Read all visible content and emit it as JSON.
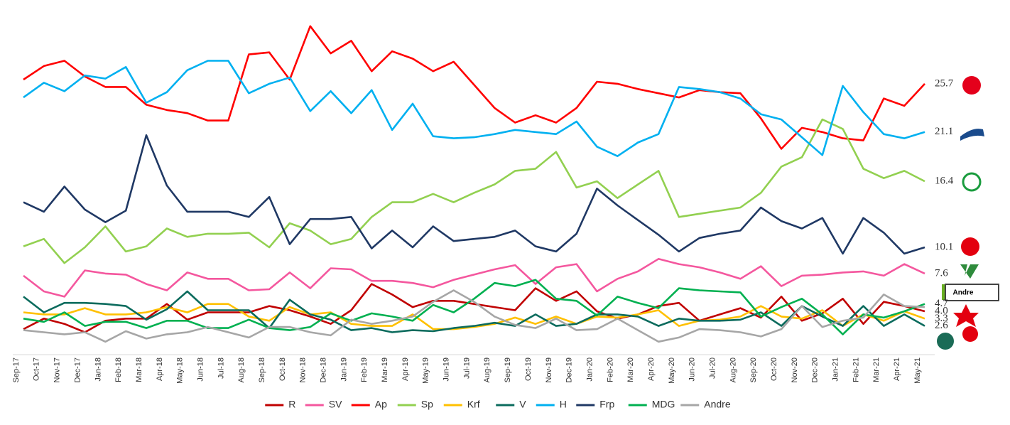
{
  "chart_data": {
    "type": "line",
    "categories": [
      "Sep-17",
      "Oct-17",
      "Nov-17",
      "Dec-17",
      "Jan-18",
      "Feb-18",
      "Mar-18",
      "Apr-18",
      "May-18",
      "Jun-18",
      "Jul-18",
      "Aug-18",
      "Sep-18",
      "Oct-18",
      "Nov-18",
      "Dec-18",
      "Jan-19",
      "Feb-19",
      "Mar-19",
      "Apr-19",
      "May-19",
      "Jun-19",
      "Jul-19",
      "Aug-19",
      "Sep-19",
      "Oct-19",
      "Nov-19",
      "Dec-19",
      "Jan-20",
      "Feb-20",
      "Mar-20",
      "Apr-20",
      "May-20",
      "Jun-20",
      "Jul-20",
      "Aug-20",
      "Sep-20",
      "Oct-20",
      "Nov-20",
      "Dec-20",
      "Jan-21",
      "Feb-21",
      "Mar-21",
      "Apr-21",
      "May-21"
    ],
    "ylim": [
      0,
      32
    ],
    "legend": "bottom",
    "series": [
      {
        "name": "R",
        "color": "#c00000",
        "values": [
          2.3,
          3.3,
          2.8,
          2.0,
          3.1,
          3.3,
          3.3,
          4.7,
          3.2,
          3.9,
          3.9,
          3.9,
          4.5,
          4.1,
          3.5,
          2.8,
          4.1,
          6.6,
          5.6,
          4.4,
          5.0,
          5.0,
          4.7,
          4.4,
          4.1,
          6.2,
          5.0,
          5.9,
          4.0,
          3.3,
          3.7,
          4.5,
          4.8,
          3.1,
          3.7,
          4.3,
          3.4,
          5.4,
          3.1,
          3.8,
          5.2,
          2.8,
          4.9,
          4.5,
          4.0
        ],
        "value_labels": [
          null,
          null,
          null,
          null,
          null,
          null,
          null,
          null,
          null,
          null,
          null,
          null,
          null,
          null,
          null,
          null,
          null,
          null,
          null,
          null,
          null,
          null,
          null,
          null,
          null,
          null,
          null,
          null,
          null,
          null,
          null,
          null,
          null,
          null,
          null,
          null,
          null,
          null,
          null,
          null,
          null,
          null,
          null,
          null,
          "4.0"
        ]
      },
      {
        "name": "SV",
        "color": "#f4579e",
        "values": [
          7.4,
          5.9,
          5.4,
          7.9,
          7.6,
          7.5,
          6.6,
          6.0,
          7.7,
          7.1,
          7.1,
          6.0,
          6.1,
          7.7,
          6.2,
          8.1,
          8.0,
          6.9,
          6.9,
          6.7,
          6.3,
          7.0,
          7.5,
          8.0,
          8.4,
          6.6,
          8.2,
          8.5,
          5.9,
          7.1,
          7.8,
          9.0,
          8.5,
          8.2,
          7.7,
          7.1,
          8.3,
          6.4,
          7.4,
          7.5,
          7.7,
          7.8,
          7.4,
          8.5,
          7.6
        ],
        "value_labels": [
          null,
          null,
          null,
          null,
          null,
          null,
          null,
          null,
          null,
          null,
          null,
          null,
          null,
          null,
          null,
          null,
          null,
          null,
          null,
          null,
          null,
          null,
          null,
          null,
          null,
          null,
          null,
          null,
          null,
          null,
          null,
          null,
          null,
          null,
          null,
          null,
          null,
          null,
          null,
          null,
          null,
          null,
          null,
          null,
          "7.6"
        ]
      },
      {
        "name": "Ap",
        "color": "#ff0000",
        "values": [
          26.1,
          27.4,
          27.9,
          26.4,
          25.4,
          25.4,
          23.7,
          23.2,
          22.9,
          22.2,
          22.2,
          28.5,
          28.7,
          26.1,
          31.2,
          28.6,
          29.8,
          26.9,
          28.8,
          28.1,
          26.9,
          27.8,
          25.6,
          23.4,
          22.0,
          22.7,
          22.0,
          23.4,
          25.9,
          25.7,
          25.2,
          24.8,
          24.4,
          25.1,
          24.9,
          24.8,
          22.4,
          19.5,
          21.5,
          21.1,
          20.5,
          20.3,
          24.3,
          23.6,
          25.7
        ],
        "value_labels": [
          null,
          null,
          null,
          null,
          null,
          null,
          null,
          null,
          null,
          null,
          null,
          null,
          null,
          null,
          null,
          null,
          null,
          null,
          null,
          null,
          null,
          null,
          null,
          null,
          null,
          null,
          null,
          null,
          null,
          null,
          null,
          null,
          null,
          null,
          null,
          null,
          null,
          null,
          null,
          null,
          null,
          null,
          null,
          null,
          "25.7"
        ]
      },
      {
        "name": "Sp",
        "color": "#92d050",
        "values": [
          10.2,
          10.9,
          8.6,
          10.1,
          12.1,
          9.7,
          10.2,
          11.9,
          11.1,
          11.4,
          11.4,
          11.5,
          10.1,
          12.4,
          11.7,
          10.4,
          10.9,
          13.0,
          14.4,
          14.4,
          15.2,
          14.4,
          15.3,
          16.1,
          17.4,
          17.6,
          19.2,
          15.8,
          16.4,
          14.8,
          16.1,
          17.4,
          13.0,
          13.3,
          13.6,
          13.9,
          15.3,
          17.8,
          18.7,
          22.3,
          21.4,
          17.6,
          16.7,
          17.4,
          16.4
        ],
        "value_labels": [
          null,
          null,
          null,
          null,
          null,
          null,
          null,
          null,
          null,
          null,
          null,
          null,
          null,
          null,
          null,
          null,
          null,
          null,
          null,
          null,
          null,
          null,
          null,
          null,
          null,
          null,
          null,
          null,
          null,
          null,
          null,
          null,
          null,
          null,
          null,
          null,
          null,
          null,
          null,
          null,
          null,
          null,
          null,
          null,
          "16.4"
        ]
      },
      {
        "name": "Krf",
        "color": "#ffc000",
        "values": [
          3.9,
          3.7,
          3.7,
          4.3,
          3.7,
          3.7,
          3.9,
          4.4,
          3.9,
          4.7,
          4.7,
          3.5,
          3.1,
          4.4,
          3.7,
          3.9,
          2.8,
          2.6,
          2.6,
          3.7,
          2.3,
          2.3,
          2.5,
          2.8,
          3.4,
          2.8,
          3.5,
          2.8,
          3.5,
          3.4,
          3.7,
          4.1,
          2.6,
          3.1,
          3.2,
          3.5,
          4.5,
          3.5,
          3.3,
          4.1,
          2.6,
          3.7,
          3.1,
          4.0,
          3.3
        ],
        "value_labels": [
          null,
          null,
          null,
          null,
          null,
          null,
          null,
          null,
          null,
          null,
          null,
          null,
          null,
          null,
          null,
          null,
          null,
          null,
          null,
          null,
          null,
          null,
          null,
          null,
          null,
          null,
          null,
          null,
          null,
          null,
          null,
          null,
          null,
          null,
          null,
          null,
          null,
          null,
          null,
          null,
          null,
          null,
          null,
          null,
          "3.3"
        ]
      },
      {
        "name": "V",
        "color": "#0b6b5d",
        "values": [
          5.4,
          3.9,
          4.8,
          4.8,
          4.7,
          4.5,
          3.2,
          4.2,
          5.9,
          4.1,
          4.1,
          4.1,
          2.4,
          5.1,
          3.7,
          3.2,
          2.2,
          2.4,
          2.0,
          2.2,
          2.1,
          2.4,
          2.6,
          2.9,
          2.6,
          3.7,
          2.6,
          2.8,
          3.7,
          3.7,
          3.5,
          2.6,
          3.3,
          3.1,
          3.1,
          3.2,
          3.9,
          2.6,
          4.5,
          3.5,
          2.6,
          4.5,
          2.6,
          3.7,
          2.6
        ],
        "value_labels": [
          null,
          null,
          null,
          null,
          null,
          null,
          null,
          null,
          null,
          null,
          null,
          null,
          null,
          null,
          null,
          null,
          null,
          null,
          null,
          null,
          null,
          null,
          null,
          null,
          null,
          null,
          null,
          null,
          null,
          null,
          null,
          null,
          null,
          null,
          null,
          null,
          null,
          null,
          null,
          null,
          null,
          null,
          null,
          null,
          "2.6"
        ]
      },
      {
        "name": "H",
        "color": "#00b0f0",
        "values": [
          24.4,
          25.8,
          25.0,
          26.5,
          26.2,
          27.3,
          23.9,
          24.9,
          27.0,
          27.9,
          27.9,
          24.8,
          25.7,
          26.3,
          23.1,
          25.0,
          22.9,
          25.1,
          21.3,
          23.8,
          20.7,
          20.5,
          20.6,
          20.9,
          21.3,
          21.1,
          20.9,
          22.1,
          19.7,
          18.8,
          20.1,
          20.9,
          25.4,
          25.2,
          24.9,
          24.3,
          22.8,
          22.3,
          20.6,
          18.9,
          25.5,
          23.0,
          20.9,
          20.5,
          21.1
        ],
        "value_labels": [
          null,
          null,
          null,
          null,
          null,
          null,
          null,
          null,
          null,
          null,
          null,
          null,
          null,
          null,
          null,
          null,
          null,
          null,
          null,
          null,
          null,
          null,
          null,
          null,
          null,
          null,
          null,
          null,
          null,
          null,
          null,
          null,
          null,
          null,
          null,
          null,
          null,
          null,
          null,
          null,
          null,
          null,
          null,
          null,
          "21.1"
        ]
      },
      {
        "name": "Frp",
        "color": "#1f3864",
        "values": [
          14.4,
          13.5,
          15.9,
          13.7,
          12.5,
          13.6,
          20.8,
          16.0,
          13.5,
          13.5,
          13.5,
          13.0,
          14.9,
          10.4,
          12.8,
          12.8,
          13.0,
          10.0,
          11.7,
          10.1,
          12.1,
          10.7,
          10.9,
          11.1,
          11.7,
          10.2,
          9.7,
          11.4,
          15.7,
          14.1,
          12.7,
          11.3,
          9.7,
          11.0,
          11.4,
          11.7,
          13.9,
          12.6,
          11.9,
          12.9,
          9.5,
          12.9,
          11.5,
          9.5,
          10.1
        ],
        "value_labels": [
          null,
          null,
          null,
          null,
          null,
          null,
          null,
          null,
          null,
          null,
          null,
          null,
          null,
          null,
          null,
          null,
          null,
          null,
          null,
          null,
          null,
          null,
          null,
          null,
          null,
          null,
          null,
          null,
          null,
          null,
          null,
          null,
          null,
          null,
          null,
          null,
          null,
          null,
          null,
          null,
          null,
          null,
          null,
          null,
          "10.1"
        ]
      },
      {
        "name": "MDG",
        "color": "#00b050",
        "values": [
          3.3,
          3.0,
          3.9,
          2.6,
          3.0,
          3.0,
          2.4,
          3.1,
          3.1,
          2.4,
          2.4,
          3.2,
          2.4,
          2.2,
          2.5,
          3.8,
          3.1,
          3.8,
          3.5,
          3.1,
          4.6,
          3.9,
          5.2,
          6.7,
          6.4,
          7.0,
          5.2,
          5.0,
          3.6,
          5.4,
          4.8,
          4.3,
          6.2,
          6.0,
          5.9,
          5.8,
          3.5,
          4.4,
          5.2,
          3.7,
          1.8,
          3.7,
          3.4,
          4.0,
          4.7
        ],
        "value_labels": [
          null,
          null,
          null,
          null,
          null,
          null,
          null,
          null,
          null,
          null,
          null,
          null,
          null,
          null,
          null,
          null,
          null,
          null,
          null,
          null,
          null,
          null,
          null,
          null,
          null,
          null,
          null,
          null,
          null,
          null,
          null,
          null,
          null,
          null,
          null,
          null,
          null,
          null,
          null,
          null,
          null,
          null,
          null,
          null,
          "4.7"
        ]
      },
      {
        "name": "Andre",
        "color": "#a6a6a6",
        "values": [
          2.2,
          2.0,
          1.8,
          2.0,
          1.1,
          2.1,
          1.4,
          1.8,
          2.0,
          2.5,
          2.0,
          1.5,
          2.5,
          2.5,
          2.0,
          1.7,
          3.2,
          2.8,
          3.1,
          3.5,
          4.9,
          6.0,
          4.9,
          3.5,
          2.7,
          2.4,
          3.3,
          2.2,
          2.3,
          3.3,
          2.2,
          1.1,
          1.5,
          2.3,
          2.2,
          2.0,
          1.6,
          2.3,
          4.5,
          2.5,
          3.1,
          3.4,
          5.6,
          4.5,
          4.4
        ]
      }
    ],
    "annotations": [
      {
        "text": "Andre"
      }
    ]
  }
}
